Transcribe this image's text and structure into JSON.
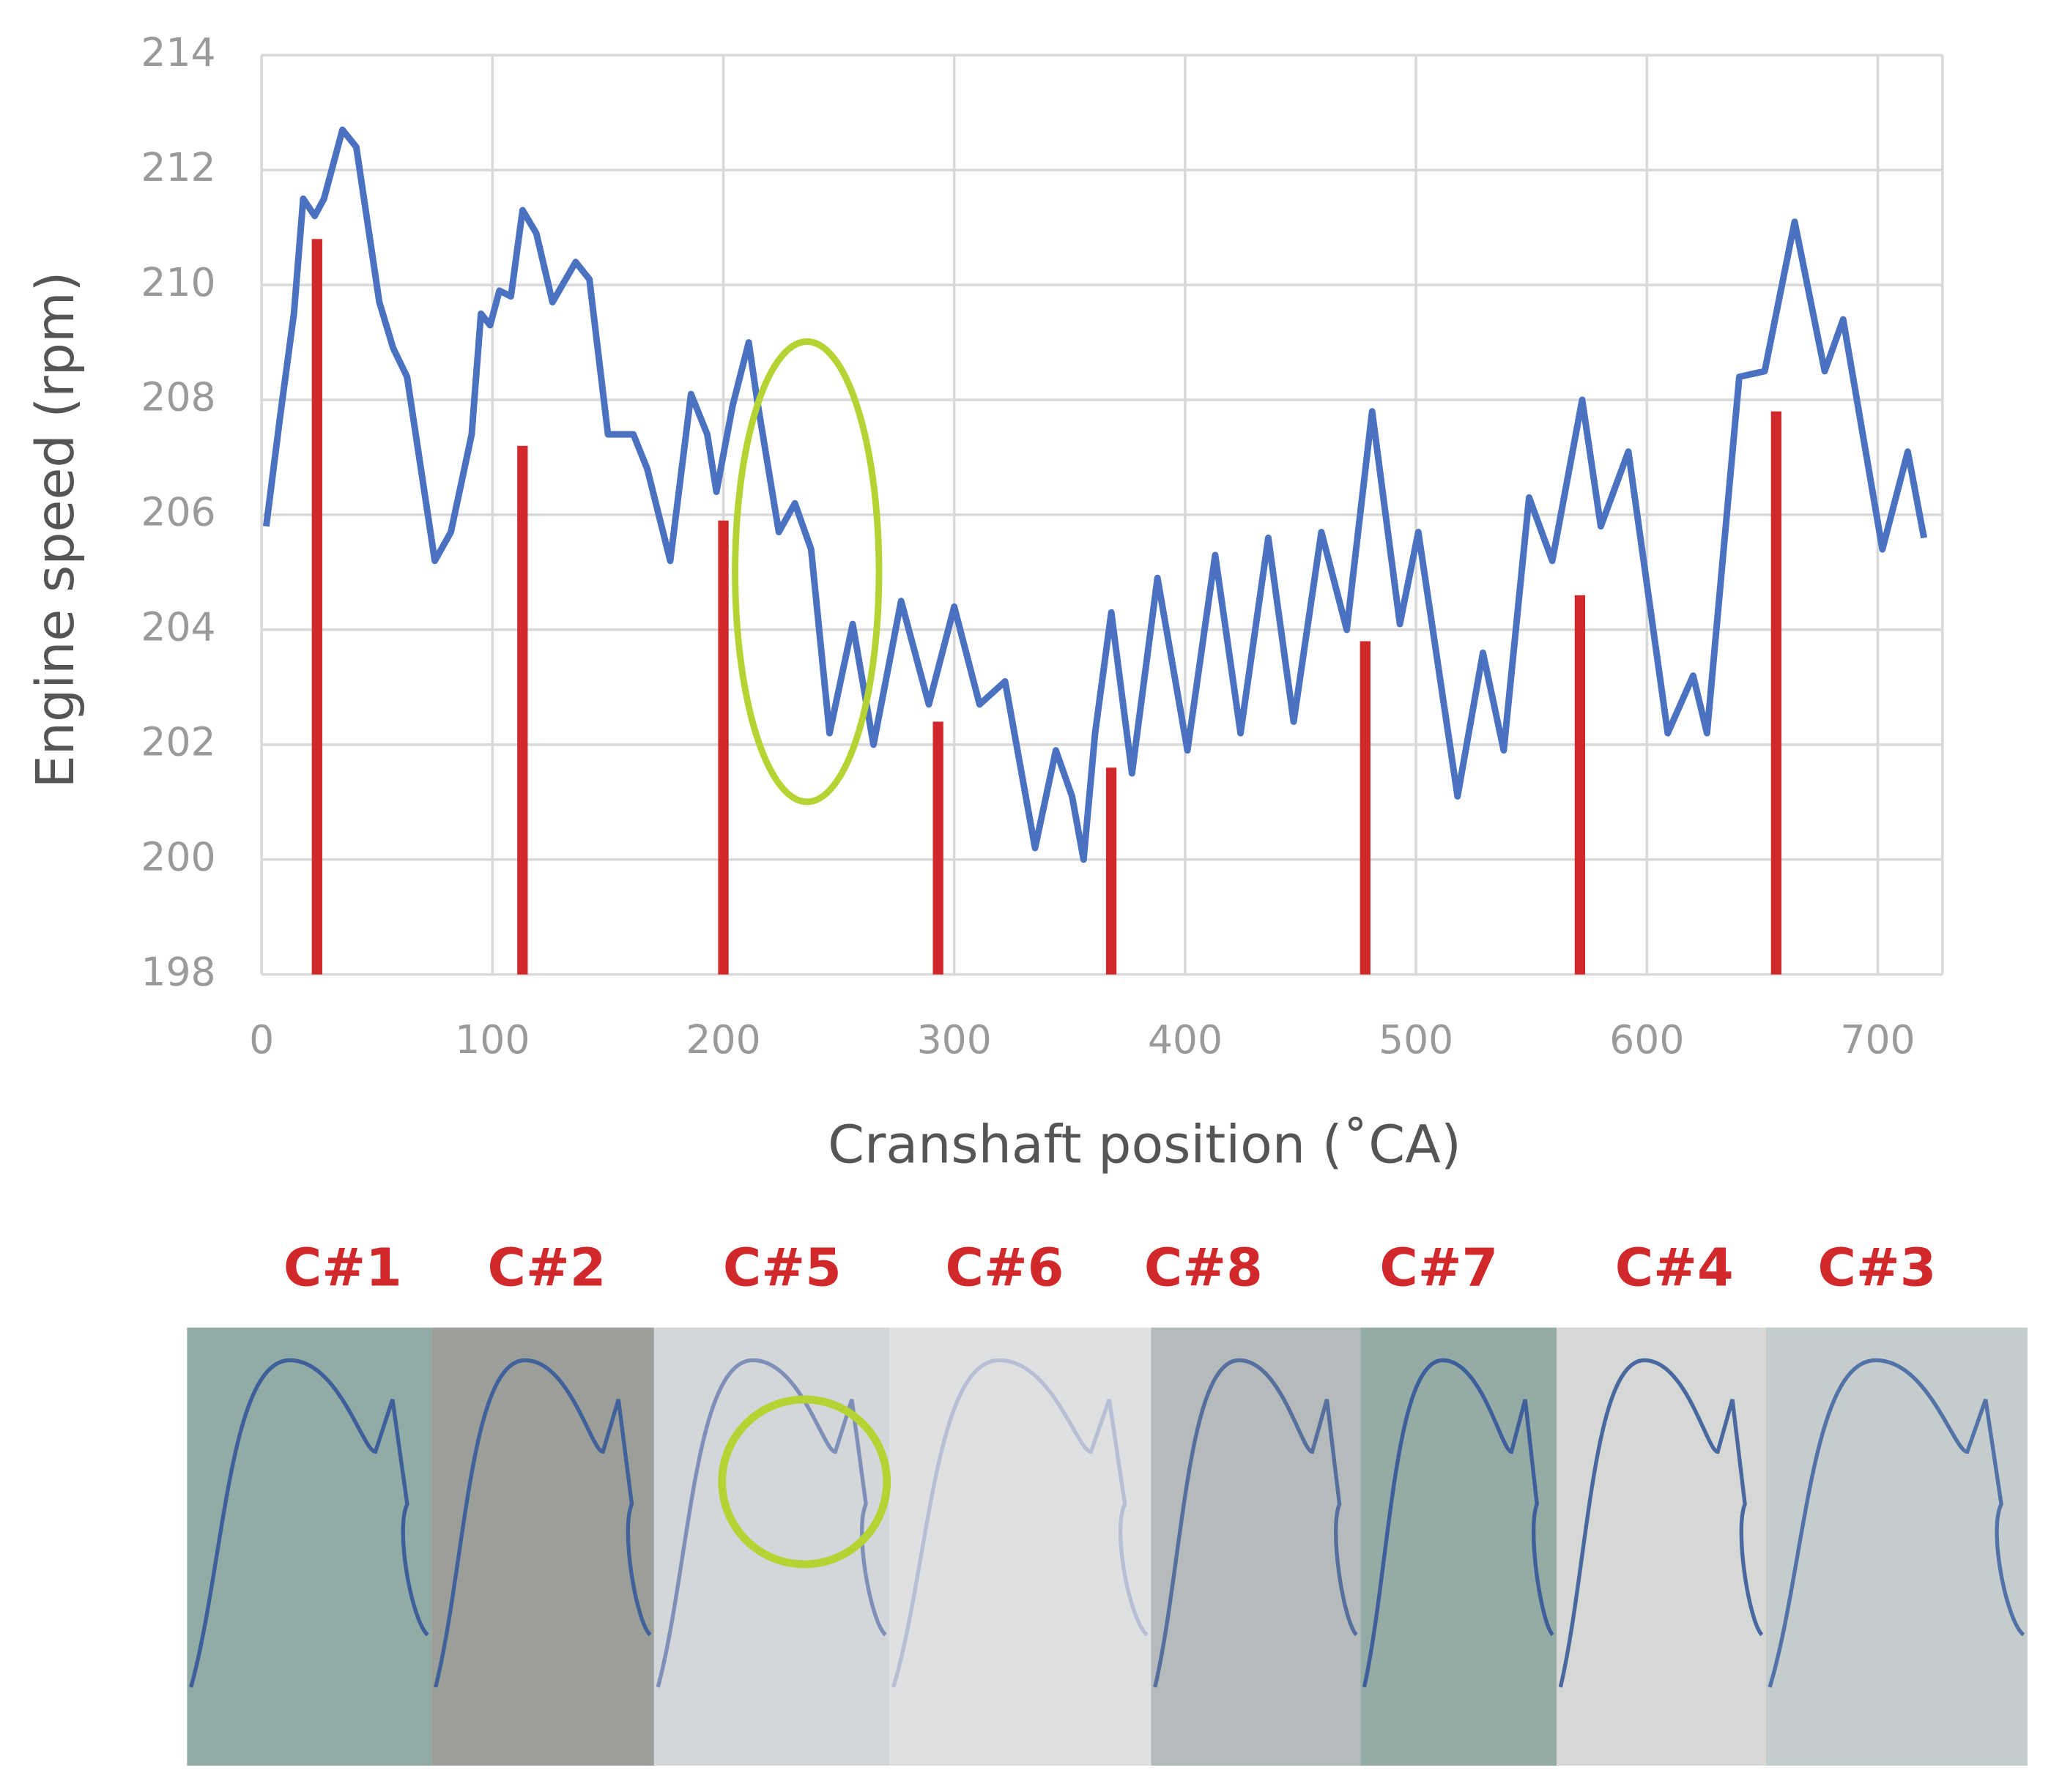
{
  "chart_data": {
    "type": "line",
    "y_label": "Engine speed (rpm)",
    "x_label": "Cranshaft position (˚CA)",
    "xlim": [
      0,
      728
    ],
    "xticks": [
      0,
      100,
      200,
      300,
      400,
      500,
      600,
      700
    ],
    "ylim": [
      198,
      214
    ],
    "yticks": [
      198,
      200,
      202,
      204,
      206,
      208,
      210,
      212,
      214
    ],
    "grid": true,
    "series": [
      {
        "type": "line",
        "color": "#4a72c0",
        "x": [
          2,
          8,
          14,
          18,
          23,
          27,
          35,
          41,
          51,
          57,
          63,
          75,
          82,
          91,
          95,
          99,
          103,
          108,
          113,
          119,
          126,
          136,
          142,
          150,
          161,
          167,
          177,
          186,
          193,
          197,
          204,
          211,
          215,
          224,
          231,
          238,
          246,
          256,
          265,
          277,
          289,
          300,
          311,
          322,
          335,
          344,
          351,
          356,
          361,
          368,
          377,
          388,
          401,
          413,
          424,
          436,
          447,
          459,
          470,
          481,
          493,
          501,
          518,
          529,
          538,
          549,
          559,
          572,
          580,
          592,
          609,
          620,
          626,
          640,
          651,
          664,
          677,
          685,
          702,
          713,
          720
        ],
        "values": [
          205.8,
          207.7,
          209.5,
          211.5,
          211.2,
          211.5,
          212.7,
          212.4,
          209.7,
          208.9,
          208.4,
          205.2,
          205.7,
          207.4,
          209.5,
          209.3,
          209.9,
          209.8,
          211.3,
          210.9,
          209.7,
          210.4,
          210.1,
          207.4,
          207.4,
          206.8,
          205.2,
          208.1,
          207.4,
          206.4,
          207.9,
          209.0,
          207.9,
          205.7,
          206.2,
          205.4,
          202.2,
          204.1,
          202.0,
          204.5,
          202.7,
          204.4,
          202.7,
          203.1,
          200.2,
          201.9,
          201.1,
          200.0,
          202.2,
          204.3,
          201.5,
          204.9,
          201.9,
          205.3,
          202.2,
          205.6,
          202.4,
          205.7,
          204.0,
          207.8,
          204.1,
          205.7,
          201.1,
          203.6,
          201.9,
          206.3,
          205.2,
          208.0,
          205.8,
          207.1,
          202.2,
          203.2,
          202.2,
          208.4,
          208.5,
          211.1,
          208.5,
          209.4,
          205.4,
          207.1,
          205.6
        ]
      },
      {
        "type": "bar",
        "color": "#d0282b",
        "x": [
          24,
          113,
          200,
          293,
          368,
          478,
          571,
          656
        ],
        "values": [
          210.8,
          207.2,
          205.9,
          202.4,
          201.6,
          203.8,
          204.6,
          207.8
        ]
      }
    ],
    "cylinder_labels": [
      "C#1",
      "C#2",
      "C#5",
      "C#6",
      "C#8",
      "C#7",
      "C#4",
      "C#3"
    ]
  }
}
